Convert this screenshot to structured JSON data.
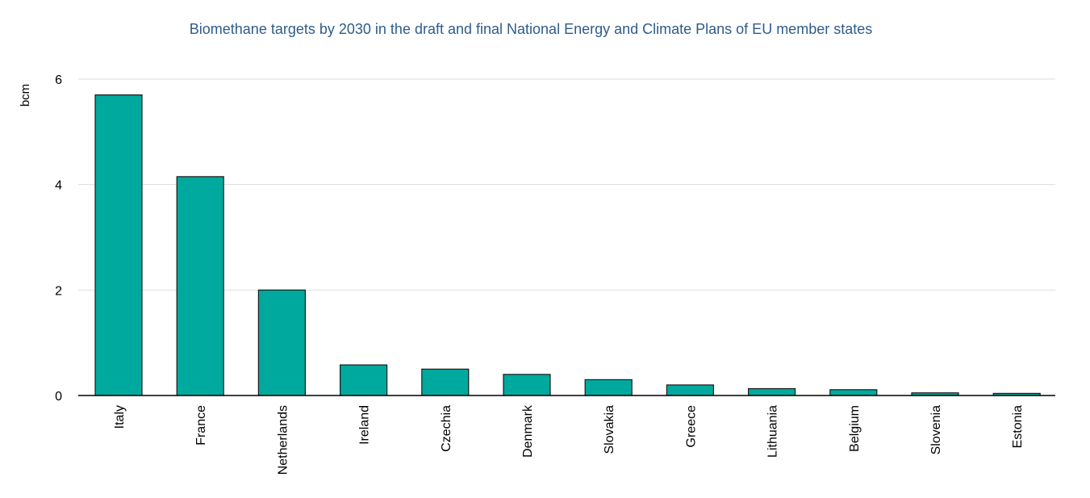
{
  "chart_data": {
    "type": "bar",
    "title": "Biomethane targets by 2030 in the draft and final National Energy and Climate Plans of EU member states",
    "xlabel": "",
    "ylabel": "bcm",
    "ylim": [
      0,
      6
    ],
    "yticks": [
      0,
      2,
      4,
      6
    ],
    "grid": true,
    "categories": [
      "Italy",
      "France",
      "Netherlands",
      "Ireland",
      "Czechia",
      "Denmark",
      "Slovakia",
      "Greece",
      "Lithuania",
      "Belgium",
      "Slovenia",
      "Estonia"
    ],
    "values": [
      5.7,
      4.15,
      2.0,
      0.58,
      0.5,
      0.4,
      0.3,
      0.2,
      0.13,
      0.11,
      0.05,
      0.04
    ]
  },
  "colors": {
    "bar_fill": "#00A99D",
    "bar_stroke": "#1a1a1a",
    "title": "#2E5C8A",
    "grid": "#dddddd",
    "axis": "#000000"
  }
}
